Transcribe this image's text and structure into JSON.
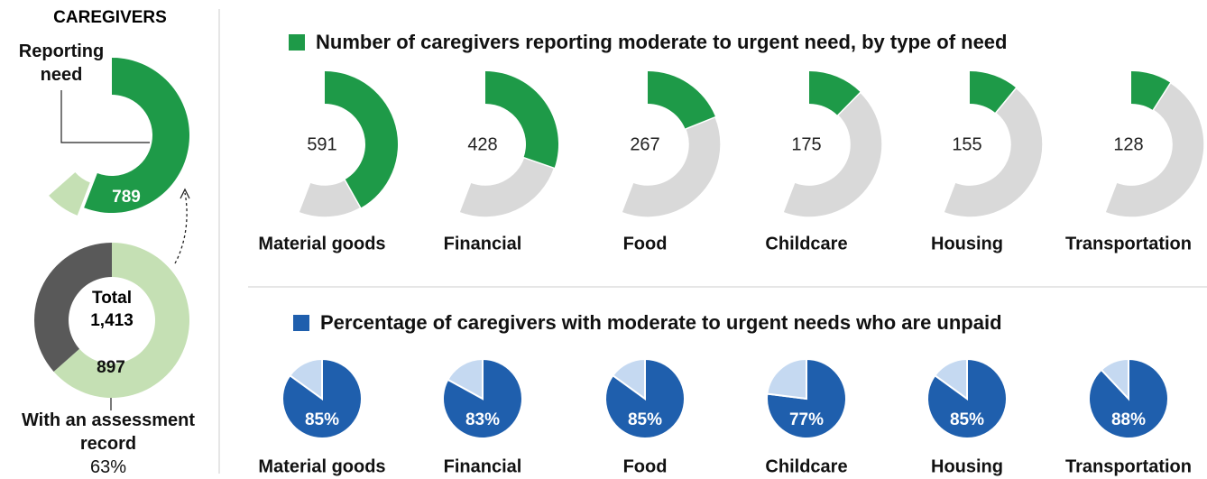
{
  "left": {
    "title": "CAREGIVERS",
    "need_label": "Reporting need",
    "need_value": 789,
    "total_label": "Total",
    "total": {
      "value": 1413,
      "label": "1,413"
    },
    "assessment_value": 897,
    "assessment_label": "With an assessment record",
    "assessment_percent": {
      "value": 63,
      "label": "63%"
    },
    "colors": {
      "need": "#1e9a48",
      "assessment": "#c5e0b4",
      "other": "#595959"
    }
  },
  "chart_data": [
    {
      "type": "donut",
      "title": "Number of caregivers reporting moderate to urgent need, by type of need",
      "categories": [
        "Material goods",
        "Financial",
        "Food",
        "Childcare",
        "Housing",
        "Transportation"
      ],
      "values": [
        591,
        428,
        267,
        175,
        155,
        128
      ],
      "color": "#1e9a48",
      "rest_color": "#d9d9d9"
    },
    {
      "type": "pie",
      "title": "Percentage of caregivers with moderate to urgent needs who are unpaid",
      "categories": [
        "Material goods",
        "Financial",
        "Food",
        "Childcare",
        "Housing",
        "Transportation"
      ],
      "values": [
        85,
        83,
        85,
        77,
        85,
        88
      ],
      "value_labels": [
        "85%",
        "83%",
        "85%",
        "77%",
        "85%",
        "88%"
      ],
      "color": "#1f5fad",
      "rest_color": "#c5d9f1"
    }
  ]
}
